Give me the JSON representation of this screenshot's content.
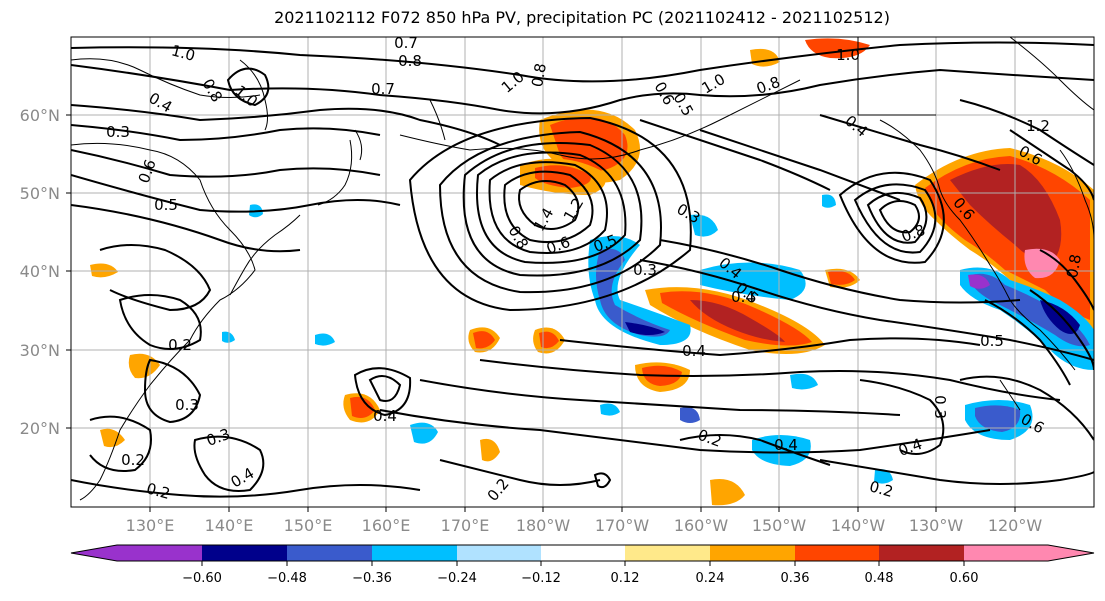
{
  "title": "2021102112 F072 850 hPa PV, precipitation PC (2021102412 - 2021102512)",
  "lat_labels": [
    "60°N",
    "50°N",
    "40°N",
    "30°N",
    "20°N"
  ],
  "lon_labels": [
    "130°E",
    "140°E",
    "150°E",
    "160°E",
    "170°E",
    "180°W",
    "170°W",
    "160°W",
    "150°W",
    "140°W",
    "130°W",
    "120°W"
  ],
  "contour_labels": [
    "1.0",
    "0.7",
    "0.8",
    "0.8",
    "0.4",
    "0.3",
    "0.6",
    "0.5",
    "1.0",
    "0.7",
    "1.0",
    "0.8",
    "0.6",
    "0.8",
    "1.0",
    "0.4",
    "0.5",
    "0.6",
    "1.2",
    "1.0",
    "1.4",
    "1.2",
    "0.8",
    "0.6",
    "0.5",
    "0.3",
    "0.3",
    "0.4",
    "0.5",
    "0.8",
    "0.6",
    "0.8",
    "0.4",
    "0.5",
    "0.2",
    "0.3",
    "0.4",
    "0.3",
    "0.2",
    "0.4",
    "0.2",
    "0.2",
    "0.4",
    "0.2",
    "0.4",
    "0.3",
    "0.6",
    "0.4",
    "0.2"
  ],
  "colorbar": {
    "ticks": [
      "−0.60",
      "−0.48",
      "−0.36",
      "−0.24",
      "−0.12",
      "0.12",
      "0.24",
      "0.36",
      "0.48",
      "0.60"
    ],
    "colors": [
      "#9932cc",
      "#00008b",
      "#3a5bcc",
      "#00bfff",
      "#b0e2ff",
      "#ffffff",
      "#ffe98a",
      "#ffa500",
      "#ff4500",
      "#b22222",
      "#ff88b0"
    ]
  },
  "map": {
    "lon_range": [
      "120°E",
      "125°W"
    ],
    "lat_range": [
      "10°N",
      "70°N"
    ],
    "contour_color": "#000000",
    "grid_color": "#b0b0b0"
  }
}
